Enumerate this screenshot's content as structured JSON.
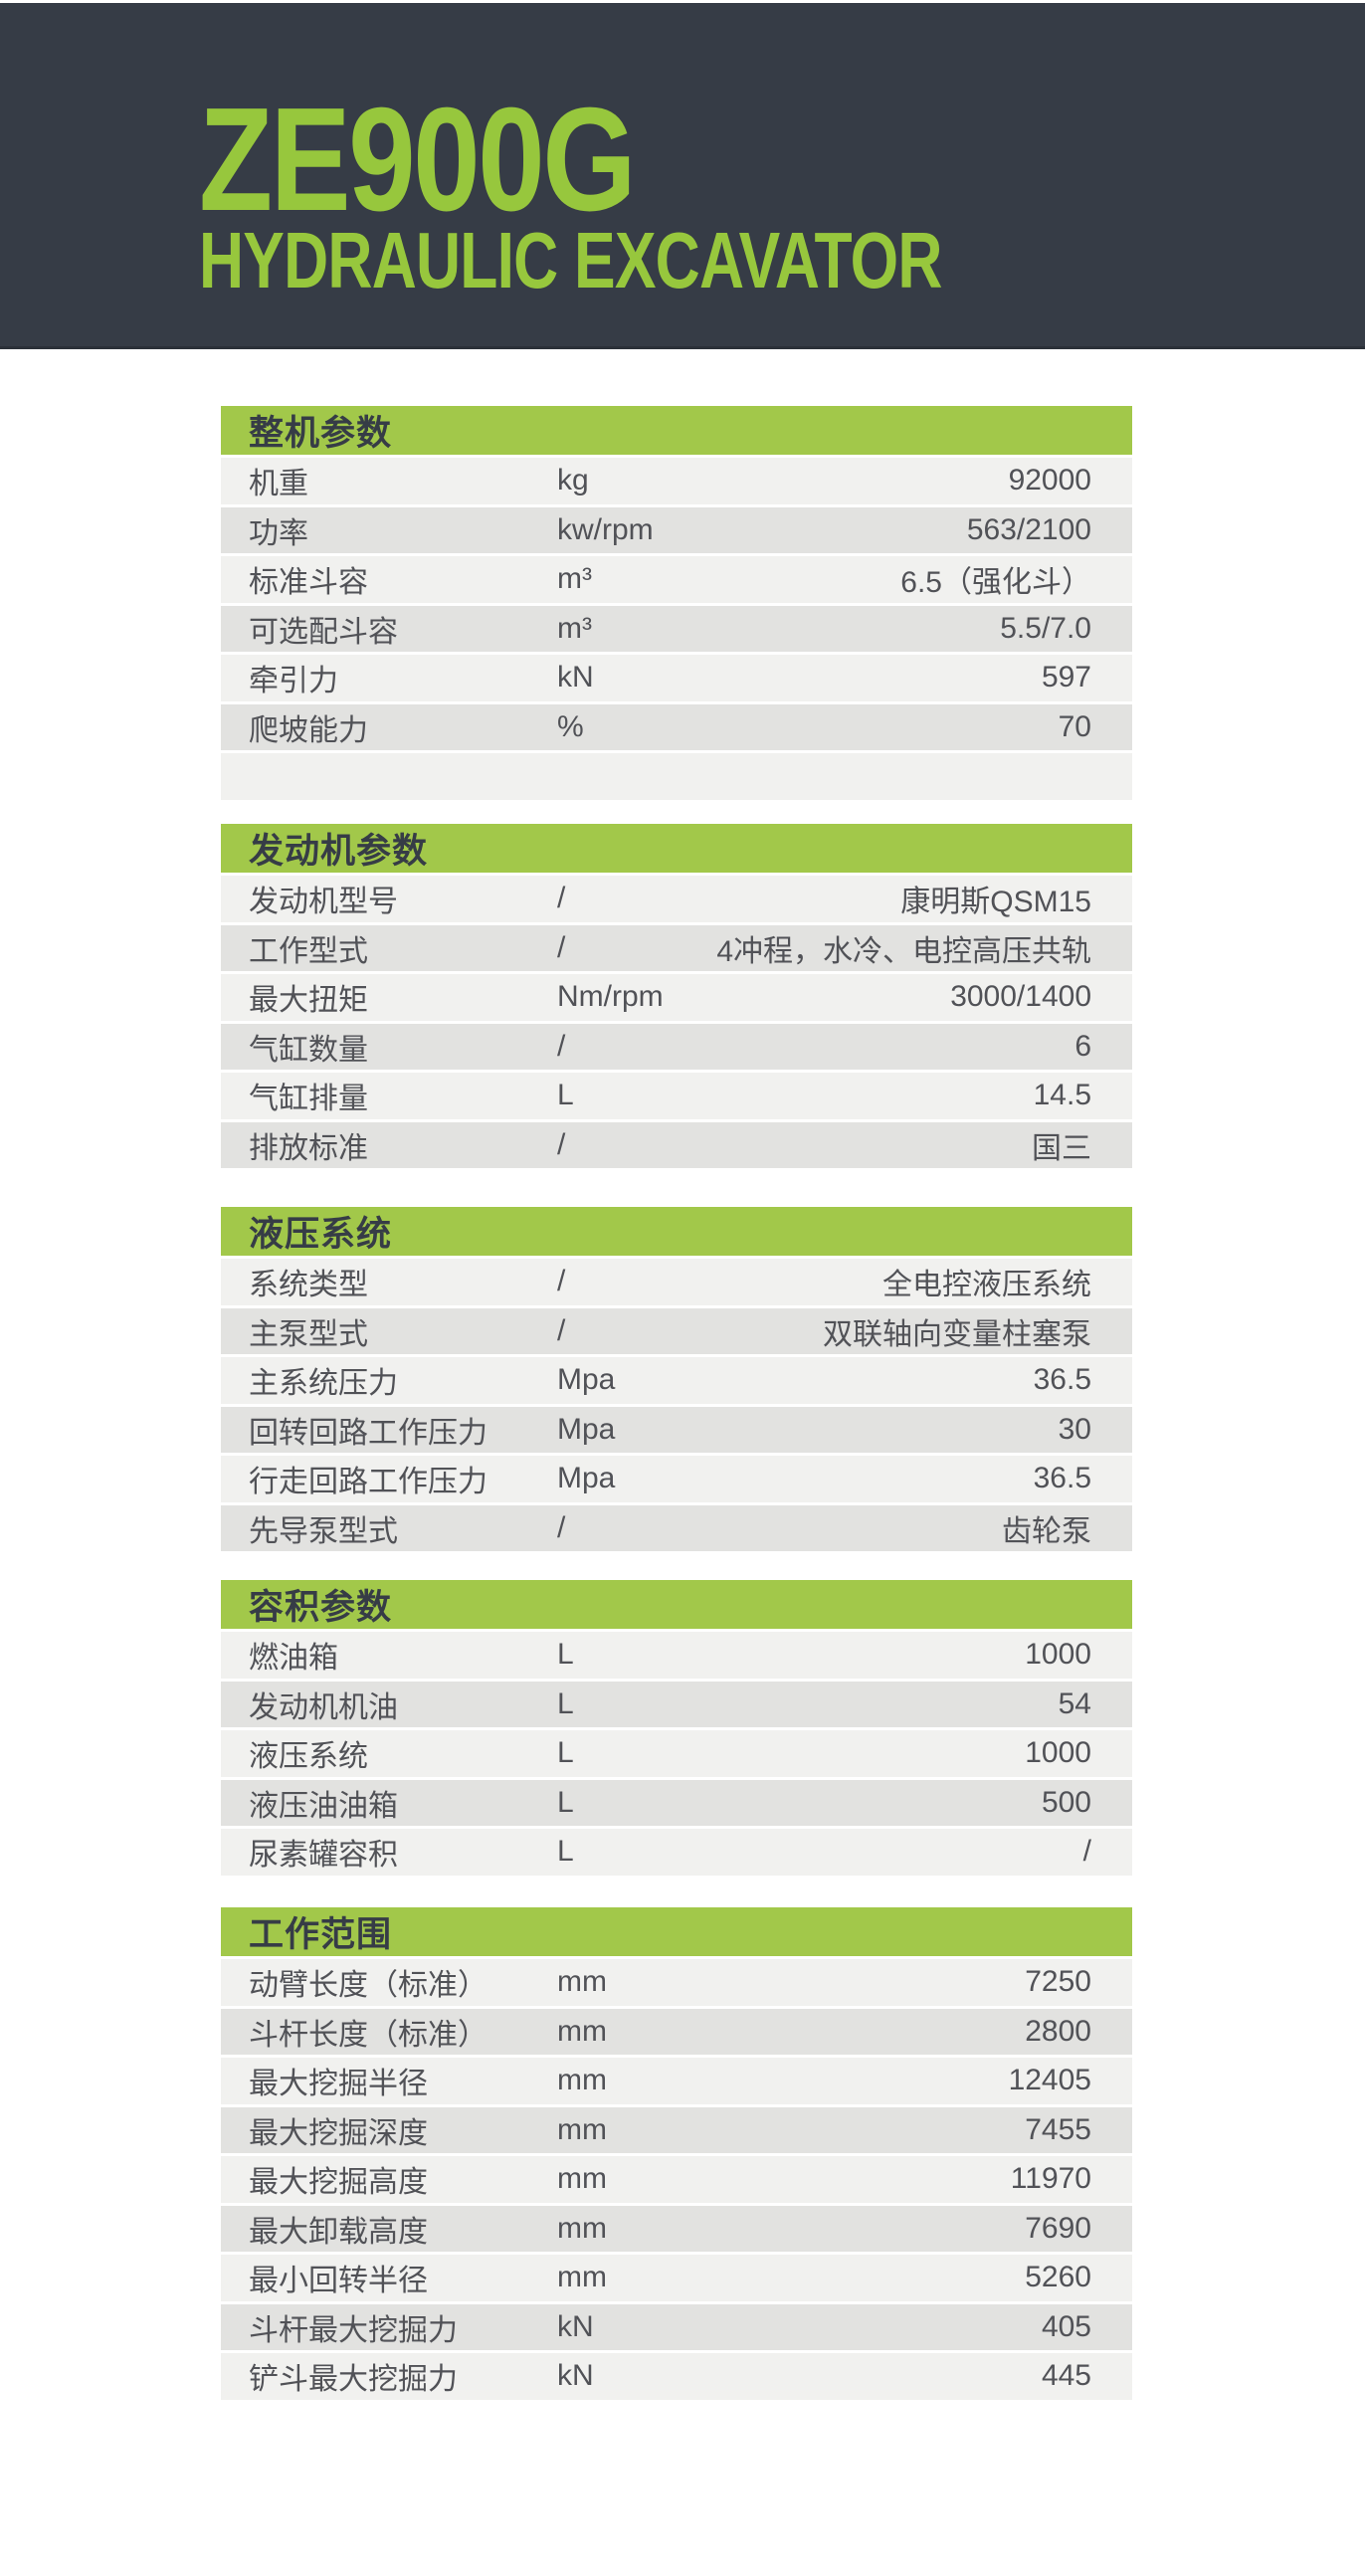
{
  "header": {
    "title": "ZE900G",
    "subtitle": "HYDRAULIC EXCAVATOR"
  },
  "colors": {
    "banner_dark": "#363c46",
    "brand_green_title": "#97c73d",
    "brand_green_bar": "#a2c84a",
    "row_light": "#f1f1ef",
    "row_dark": "#e2e2e0",
    "text": "#515257"
  },
  "tables": [
    {
      "title": "整机参数",
      "rows": [
        {
          "label": "机重",
          "unit": "kg",
          "value": "92000"
        },
        {
          "label": "功率",
          "unit": "kw/rpm",
          "value": "563/2100"
        },
        {
          "label": "标准斗容",
          "unit": "m³",
          "value": "6.5（强化斗）"
        },
        {
          "label": "可选配斗容",
          "unit": "m³",
          "value": "5.5/7.0"
        },
        {
          "label": "牵引力",
          "unit": "kN",
          "value": "597"
        },
        {
          "label": "爬坡能力",
          "unit": "%",
          "value": "70"
        },
        {
          "label": "",
          "unit": "",
          "value": ""
        }
      ]
    },
    {
      "title": "发动机参数",
      "rows": [
        {
          "label": "发动机型号",
          "unit": "/",
          "value": "康明斯QSM15"
        },
        {
          "label": "工作型式",
          "unit": "/",
          "value": "4冲程，水冷、电控高压共轨"
        },
        {
          "label": "最大扭矩",
          "unit": "Nm/rpm",
          "value": "3000/1400"
        },
        {
          "label": "气缸数量",
          "unit": "/",
          "value": "6"
        },
        {
          "label": "气缸排量",
          "unit": "L",
          "value": "14.5"
        },
        {
          "label": "排放标准",
          "unit": "/",
          "value": "国三"
        }
      ]
    },
    {
      "title": "液压系统",
      "rows": [
        {
          "label": "系统类型",
          "unit": "/",
          "value": "全电控液压系统"
        },
        {
          "label": "主泵型式",
          "unit": "/",
          "value": "双联轴向变量柱塞泵"
        },
        {
          "label": "主系统压力",
          "unit": "Mpa",
          "value": "36.5"
        },
        {
          "label": "回转回路工作压力",
          "unit": "Mpa",
          "value": "30"
        },
        {
          "label": "行走回路工作压力",
          "unit": "Mpa",
          "value": "36.5"
        },
        {
          "label": "先导泵型式",
          "unit": "/",
          "value": "齿轮泵"
        }
      ]
    },
    {
      "title": "容积参数",
      "rows": [
        {
          "label": "燃油箱",
          "unit": "L",
          "value": "1000"
        },
        {
          "label": "发动机机油",
          "unit": "L",
          "value": "54"
        },
        {
          "label": "液压系统",
          "unit": "L",
          "value": "1000"
        },
        {
          "label": "液压油油箱",
          "unit": "L",
          "value": "500"
        },
        {
          "label": "尿素罐容积",
          "unit": "L",
          "value": "/"
        }
      ]
    },
    {
      "title": "工作范围",
      "rows": [
        {
          "label": "动臂长度（标准）",
          "unit": "mm",
          "value": "7250"
        },
        {
          "label": "斗杆长度（标准）",
          "unit": "mm",
          "value": "2800"
        },
        {
          "label": "最大挖掘半径",
          "unit": "mm",
          "value": "12405"
        },
        {
          "label": "最大挖掘深度",
          "unit": "mm",
          "value": "7455"
        },
        {
          "label": "最大挖掘高度",
          "unit": "mm",
          "value": "11970"
        },
        {
          "label": "最大卸载高度",
          "unit": "mm",
          "value": "7690"
        },
        {
          "label": "最小回转半径",
          "unit": "mm",
          "value": "5260"
        },
        {
          "label": "斗杆最大挖掘力",
          "unit": "kN",
          "value": "405"
        },
        {
          "label": "铲斗最大挖掘力",
          "unit": "kN",
          "value": "445"
        }
      ]
    }
  ]
}
